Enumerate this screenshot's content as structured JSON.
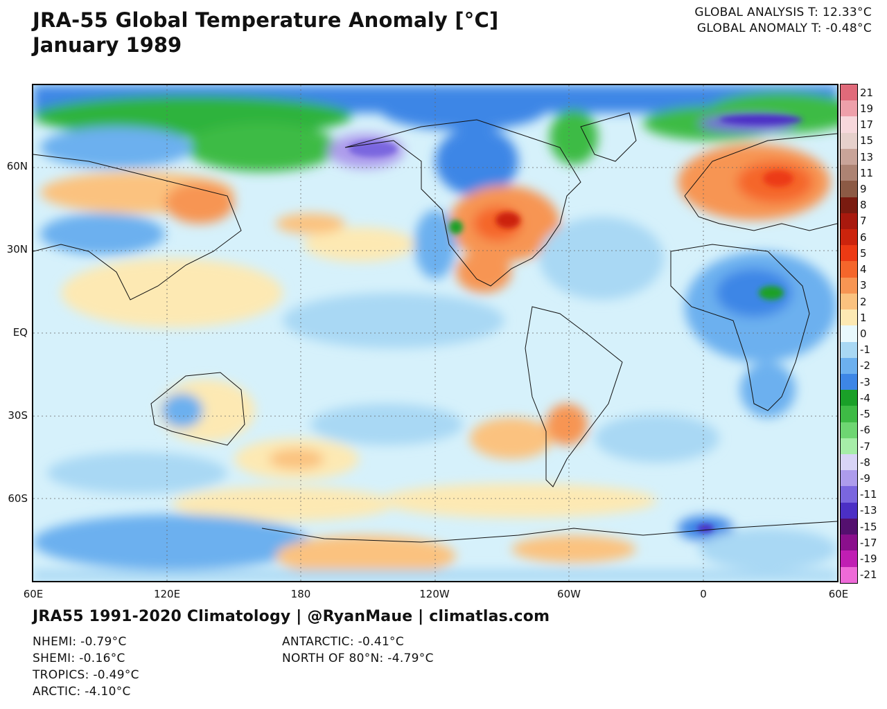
{
  "header": {
    "title": "JRA-55 Global Temperature Anomaly [°C]",
    "subtitle": "January 1989",
    "global_analysis": "GLOBAL ANALYSIS T: 12.33°C",
    "global_anomaly": "GLOBAL ANOMALY T: -0.48°C"
  },
  "map": {
    "lat_labels": [
      "60N",
      "30N",
      "EQ",
      "30S",
      "60S"
    ],
    "lon_labels": [
      "60E",
      "120E",
      "180",
      "120W",
      "60W",
      "0",
      "60E"
    ],
    "colorbar": {
      "labels": [
        "21",
        "19",
        "17",
        "15",
        "13",
        "11",
        "9",
        "8",
        "7",
        "6",
        "5",
        "4",
        "3",
        "2",
        "1",
        "0",
        "-1",
        "-2",
        "-3",
        "-4",
        "-5",
        "-6",
        "-7",
        "-8",
        "-9",
        "-11",
        "-13",
        "-15",
        "-17",
        "-19",
        "-21"
      ],
      "colors": [
        "#e06a7a",
        "#eea0aa",
        "#f7d8dc",
        "#e6d0cb",
        "#c9a499",
        "#ad8373",
        "#8c5a45",
        "#7a1b10",
        "#a8190e",
        "#cc240d",
        "#ec3a14",
        "#f5662b",
        "#f79553",
        "#fbc27f",
        "#fde9b3",
        "#e9f9fd",
        "#a9d8f4",
        "#6cb0ef",
        "#3d86e6",
        "#1aa028",
        "#3ebb45",
        "#6ed672",
        "#a6eda8",
        "#d8d4f6",
        "#ad9cec",
        "#7a66df",
        "#4b2fc5",
        "#54106f",
        "#8a0f8c",
        "#c01eb3",
        "#ee6ad8"
      ]
    }
  },
  "footer": {
    "credit": "JRA55 1991-2020 Climatology | @RyanMaue | climatlas.com",
    "stats_left": [
      "NHEMI: -0.79°C",
      "SHEMI: -0.16°C",
      "TROPICS: -0.49°C",
      "ARCTIC: -4.10°C"
    ],
    "stats_mid": [
      "ANTARCTIC: -0.41°C",
      "NORTH OF 80°N: -4.79°C"
    ]
  }
}
